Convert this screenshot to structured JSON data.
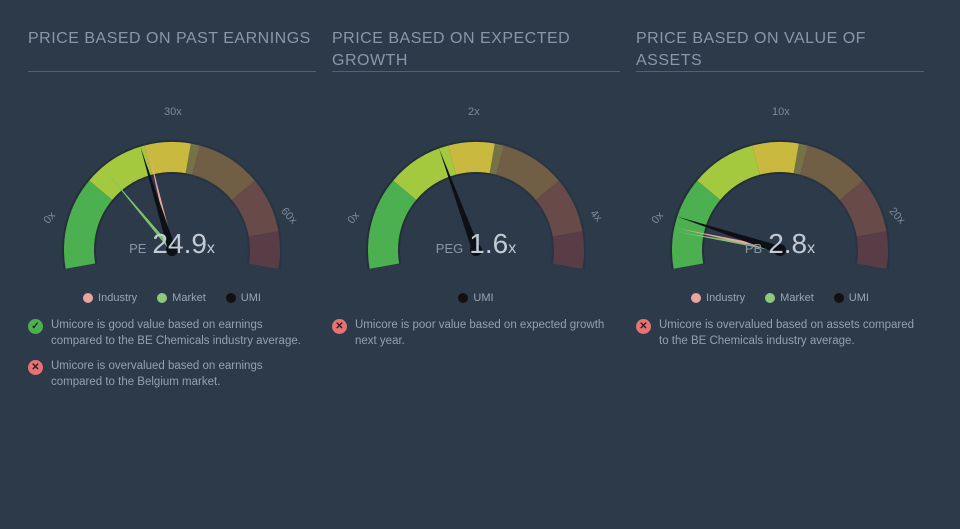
{
  "background_color": "#2d3a4a",
  "title_color": "#8997a8",
  "text_color": "#9aa5b1",
  "value_color": "#c2cbd4",
  "divider_color": "#53616f",
  "gauge_colors": {
    "good_start": "#4caf50",
    "good_end": "#a5c93e",
    "warn_start": "#c9b93e",
    "warn_end": "#c08a3e",
    "bad_start": "#b06048",
    "bad_end": "#8c4242",
    "track_bg": "#252f3b",
    "needle_main": "#0d1117",
    "needle_market": "#7cc46f",
    "needle_industry": "#e7a59c",
    "needle_highlight": "#ffffff"
  },
  "legend_colors": {
    "industry": "#e7a59c",
    "market": "#8ec97f",
    "umi": "#111111"
  },
  "status_colors": {
    "good": "#4caf50",
    "bad": "#e57373"
  },
  "panels": [
    {
      "title": "PRICE BASED ON PAST EARNINGS",
      "metric_label": "PE",
      "metric_value": "24.9",
      "suffix": "x",
      "ticks": {
        "left": "0x",
        "top": "30x",
        "right": "60x"
      },
      "scale_max": 60,
      "needles": {
        "industry": 26,
        "market": 18,
        "umi": 24.9
      },
      "legend": [
        {
          "key": "industry",
          "label": "Industry"
        },
        {
          "key": "market",
          "label": "Market"
        },
        {
          "key": "umi",
          "label": "UMI"
        }
      ],
      "notes": [
        {
          "status": "good",
          "text": "Umicore is good value based on earnings compared to the BE Chemicals industry average."
        },
        {
          "status": "bad",
          "text": "Umicore is overvalued based on earnings compared to the Belgium market."
        }
      ]
    },
    {
      "title": "PRICE BASED ON EXPECTED GROWTH",
      "metric_label": "PEG",
      "metric_value": "1.6",
      "suffix": "x",
      "ticks": {
        "left": "0x",
        "top": "2x",
        "right": "4x"
      },
      "scale_max": 4,
      "needles": {
        "umi": 1.6
      },
      "legend": [
        {
          "key": "umi",
          "label": "UMI"
        }
      ],
      "notes": [
        {
          "status": "bad",
          "text": "Umicore is poor value based on expected growth next year."
        }
      ]
    },
    {
      "title": "PRICE BASED ON VALUE OF ASSETS",
      "metric_label": "PB",
      "metric_value": "2.8",
      "suffix": "x",
      "ticks": {
        "left": "0x",
        "top": "10x",
        "right": "20x"
      },
      "scale_max": 20,
      "needles": {
        "industry": 2.2,
        "market": 2.0,
        "umi": 2.8
      },
      "legend": [
        {
          "key": "industry",
          "label": "Industry"
        },
        {
          "key": "market",
          "label": "Market"
        },
        {
          "key": "umi",
          "label": "UMI"
        }
      ],
      "notes": [
        {
          "status": "bad",
          "text": "Umicore is overvalued based on assets compared to the BE Chemicals industry average."
        }
      ]
    }
  ]
}
